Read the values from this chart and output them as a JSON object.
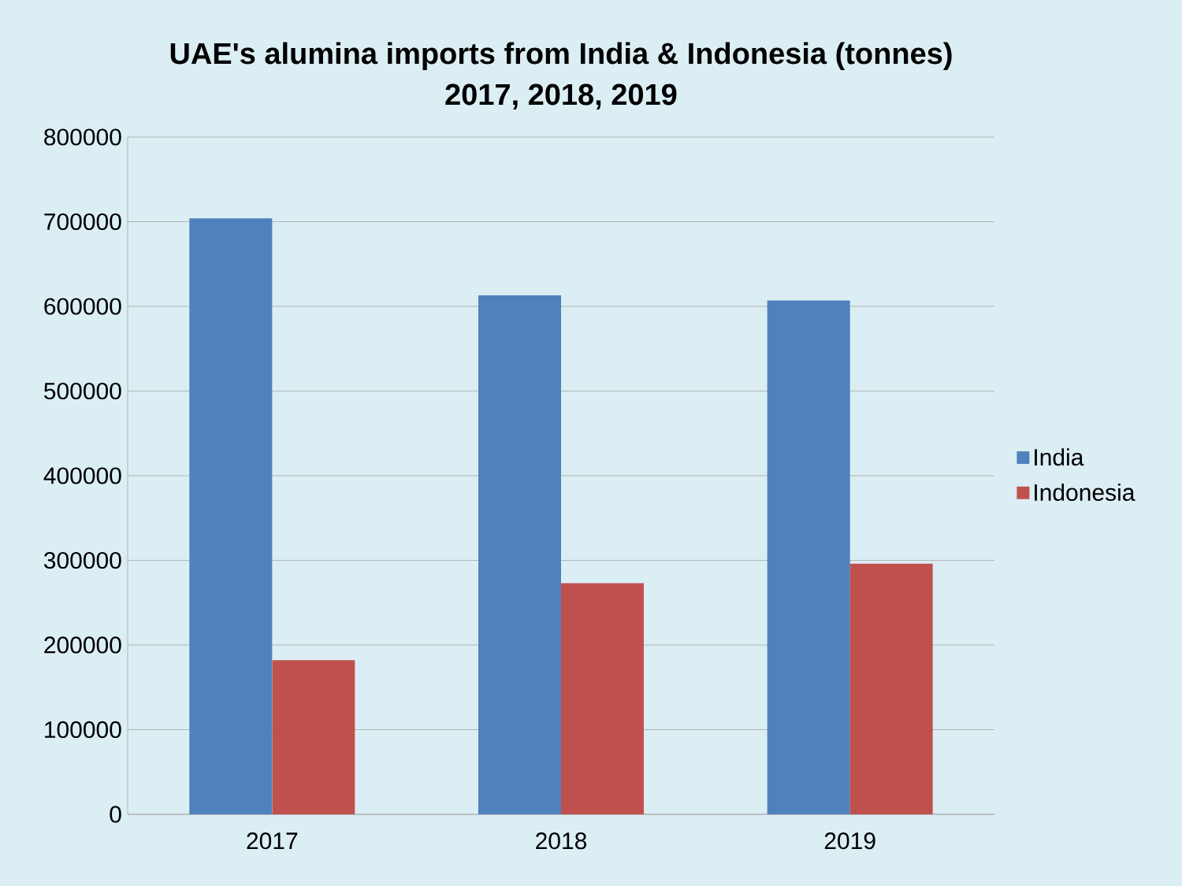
{
  "chart_data": {
    "type": "bar",
    "title": "UAE's alumina imports from India & Indonesia (tonnes)",
    "subtitle": "2017, 2018, 2019",
    "categories": [
      "2017",
      "2018",
      "2019"
    ],
    "series": [
      {
        "name": "India",
        "color": "#4f81bd",
        "values": [
          704000,
          613000,
          607000
        ]
      },
      {
        "name": "Indonesia",
        "color": "#c0504d",
        "values": [
          182000,
          273000,
          296000
        ]
      }
    ],
    "ylim": [
      0,
      800000
    ],
    "yticks": [
      0,
      100000,
      200000,
      300000,
      400000,
      500000,
      600000,
      700000,
      800000
    ],
    "grid": "y",
    "legend": "right"
  }
}
